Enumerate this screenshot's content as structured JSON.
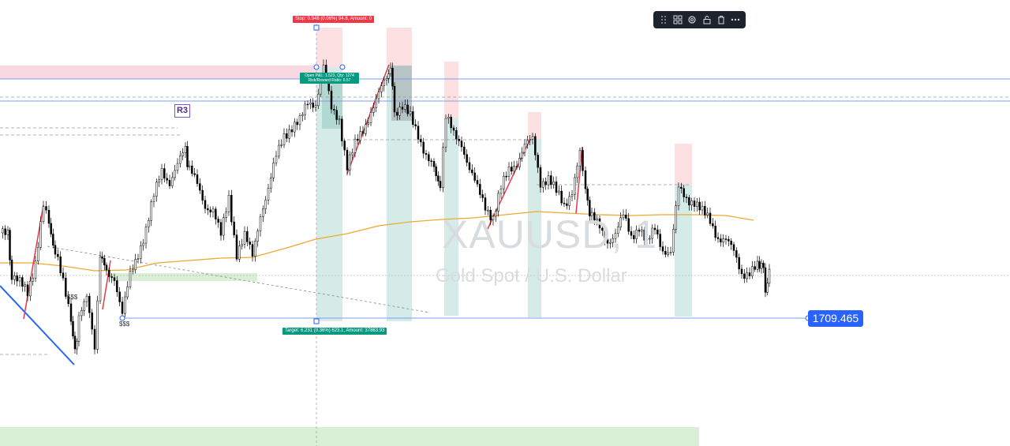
{
  "symbol": {
    "ticker": "XAUUSD, 1",
    "description": "Gold Spot / U.S. Dollar"
  },
  "price_badge": "1709.465",
  "pivot_label": "R3",
  "position": {
    "stop_label": "Stop: 0.948 (0.06%) 94.8, Amount: 0",
    "open_label_line1": "Open P&L: 1.523, Qty: 1274",
    "open_label_line2": "Risk/Reward Ratio: 6.57",
    "target_label": "Target: 6.231 (0.36%) 623.1, Amount: 37863.93"
  },
  "liquidity_labels": [
    "$$$",
    "$$$"
  ],
  "toolbar": {
    "items": [
      {
        "icon": "drag-handle-icon"
      },
      {
        "icon": "template-icon"
      },
      {
        "icon": "settings-icon"
      },
      {
        "icon": "lock-icon"
      },
      {
        "icon": "delete-icon"
      },
      {
        "icon": "more-icon"
      }
    ]
  },
  "colors": {
    "up": "#ffffff",
    "down": "#000000",
    "ma": "#f0a732",
    "blue_line": "#2962ff",
    "stop_zone": "#fbd5d9",
    "target_zone": "#cfe9e6",
    "green_zone": "#d9efd6",
    "pink_zone": "#f8d9e2",
    "drawing_red": "#e53948"
  }
}
